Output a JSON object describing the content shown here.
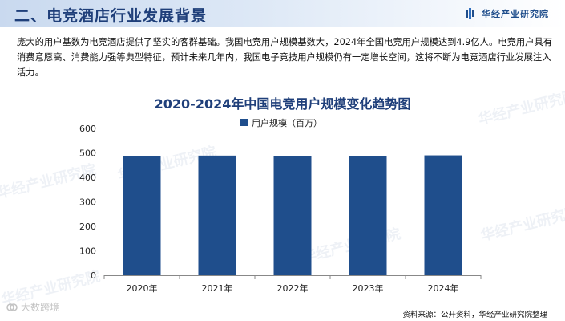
{
  "header": {
    "title": "二、电竞酒店行业发展背景",
    "brand": "华经产业研究院"
  },
  "intro_text": "庞大的用户基数为电竞酒店提供了坚实的客群基础。我国电竞用户规模基数大，2024年全国电竞用户规模达到4.9亿人。电竞用户具有消费意愿高、消费能力强等典型特征，预计未来几年内，我国电子竞技用户规模仍有一定增长空间，这将不断为电竞酒店行业发展注入活力。",
  "watermark_text": "华经产业研究院",
  "footer": {
    "source": "资料来源：公开资料，华经产业研究院整理",
    "mark": "大数跨境"
  },
  "colors": {
    "bar": "#1f4e8c",
    "title": "#1f3f7a",
    "axis": "#888888"
  },
  "chart_data": {
    "type": "bar",
    "title": "2020-2024年中国电竞用户规模变化趋势图",
    "categories": [
      "2020年",
      "2021年",
      "2022年",
      "2023年",
      "2024年"
    ],
    "series": [
      {
        "name": "用户规模（百万）",
        "values": [
          488,
          489,
          488,
          488,
          490
        ]
      }
    ],
    "ylim": [
      0,
      600
    ],
    "yticks": [
      0,
      100,
      200,
      300,
      400,
      500,
      600
    ],
    "legend": "top",
    "grid": false
  }
}
